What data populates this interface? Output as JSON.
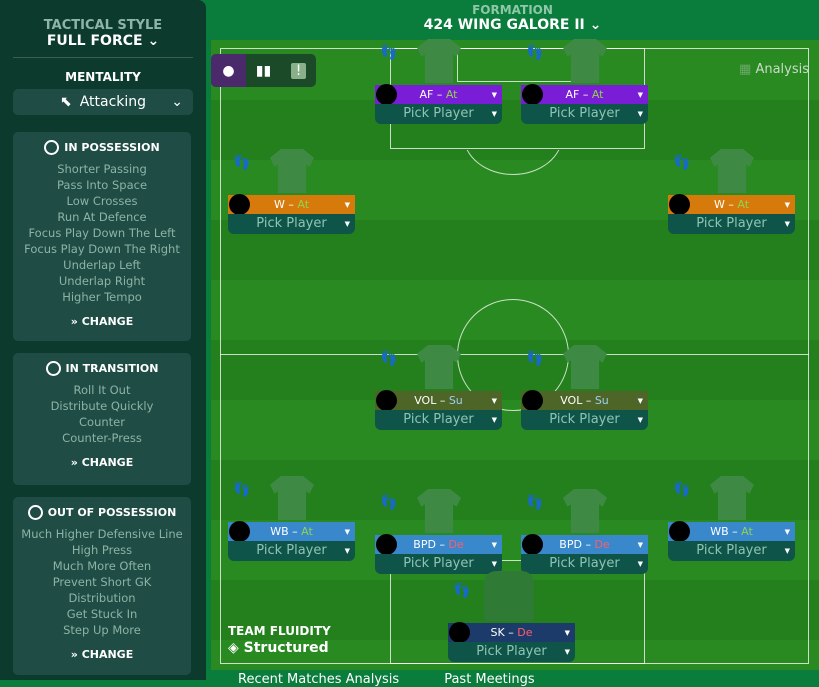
{
  "sidebar": {
    "tactical_style_label": "TACTICAL STYLE",
    "tactical_style": "FULL FORCE",
    "mentality_label": "MENTALITY",
    "mentality": "Attacking",
    "in_possession": {
      "title": "IN POSSESSION",
      "items": [
        "Shorter Passing",
        "Pass Into Space",
        "Low Crosses",
        "Run At Defence",
        "Focus Play Down The Left",
        "Focus Play Down The Right",
        "Underlap Left",
        "Underlap Right",
        "Higher Tempo"
      ],
      "change": "CHANGE"
    },
    "in_transition": {
      "title": "IN TRANSITION",
      "items": [
        "Roll It Out",
        "Distribute Quickly",
        "Counter",
        "Counter-Press"
      ],
      "change": "CHANGE"
    },
    "out_of_possession": {
      "title": "OUT OF POSSESSION",
      "items": [
        "Much Higher Defensive Line",
        "High Press",
        "Much More Often",
        "Prevent Short GK",
        "Distribution",
        "Get Stuck In",
        "Step Up More"
      ],
      "change": "CHANGE"
    }
  },
  "formation": {
    "label": "FORMATION",
    "name": "424 WING GALORE II"
  },
  "analysis_label": "Analysis",
  "team_fluidity": {
    "label": "TEAM FLUIDITY",
    "value": "Structured"
  },
  "bottom_tabs": [
    "Recent Matches Analysis",
    "Past Meetings"
  ],
  "colors": {
    "AF": "#7a1dd6",
    "W": "#d67a0c",
    "VOL": "#4d6628",
    "WB": "#3a88cc",
    "BPD": "#3a88cc",
    "SK": "#1d3b6a",
    "At": "#8fd44f",
    "Su": "#9ccff0",
    "De": "#ff5d6c"
  },
  "players": [
    {
      "role": "AF",
      "duty": "At",
      "pick": "Pick Player"
    },
    {
      "role": "AF",
      "duty": "At",
      "pick": "Pick Player"
    },
    {
      "role": "W",
      "duty": "At",
      "pick": "Pick Player"
    },
    {
      "role": "W",
      "duty": "At",
      "pick": "Pick Player"
    },
    {
      "role": "VOL",
      "duty": "Su",
      "pick": "Pick Player"
    },
    {
      "role": "VOL",
      "duty": "Su",
      "pick": "Pick Player"
    },
    {
      "role": "WB",
      "duty": "At",
      "pick": "Pick Player"
    },
    {
      "role": "BPD",
      "duty": "De",
      "pick": "Pick Player"
    },
    {
      "role": "BPD",
      "duty": "De",
      "pick": "Pick Player"
    },
    {
      "role": "WB",
      "duty": "At",
      "pick": "Pick Player"
    },
    {
      "role": "SK",
      "duty": "De",
      "pick": "Pick Player"
    }
  ]
}
